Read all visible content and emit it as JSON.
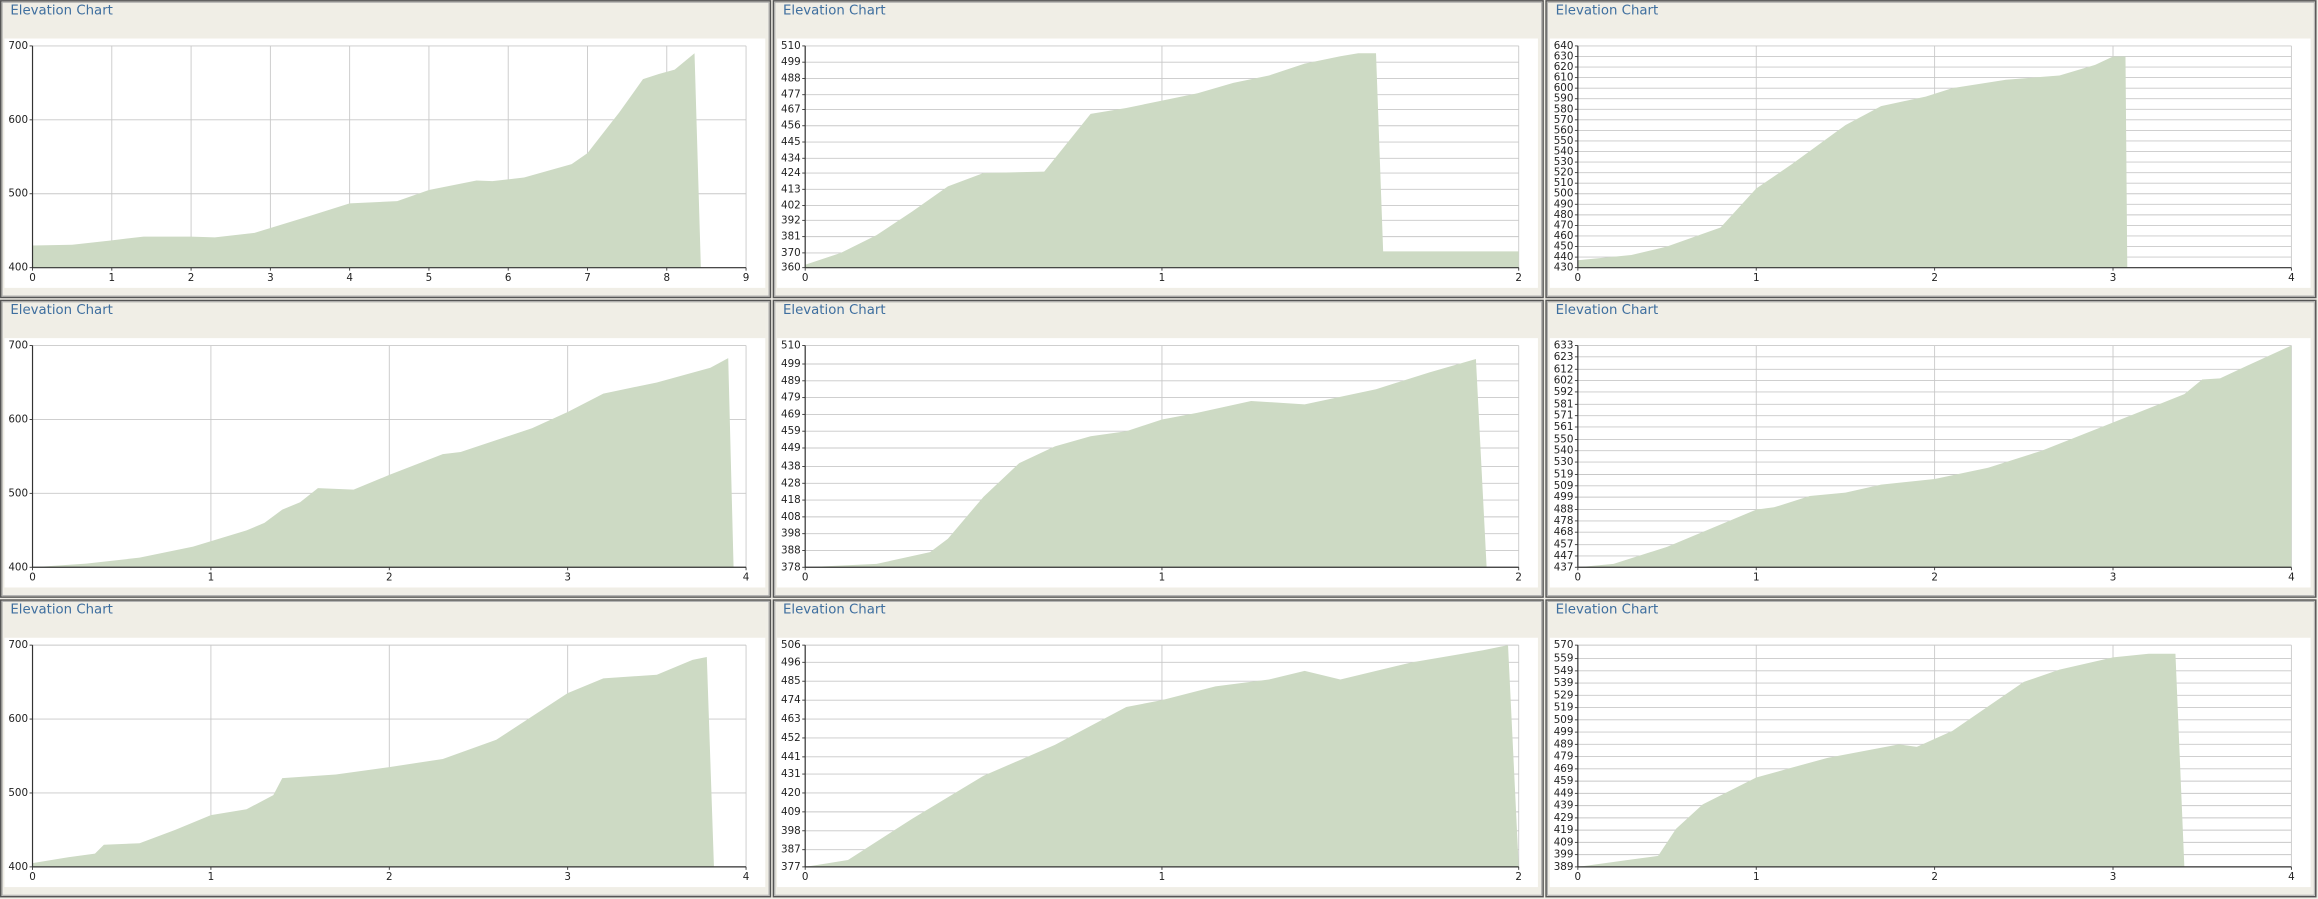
{
  "chart_data": [
    {
      "type": "area",
      "title": "Elevation Chart",
      "color": "#cddac4",
      "grid": true,
      "x": [
        0,
        0.5,
        1,
        1.4,
        2,
        2.3,
        2.8,
        3.5,
        4,
        4.6,
        5,
        5.6,
        5.8,
        6.2,
        6.8,
        7,
        7.4,
        7.7,
        7.9,
        8.1,
        8.35,
        8.43
      ],
      "values": [
        430,
        431,
        437,
        442,
        442,
        441,
        447,
        470,
        487,
        490,
        505,
        518,
        517,
        522,
        540,
        555,
        610,
        655,
        662,
        668,
        690,
        400
      ],
      "xlim": [
        0,
        9
      ],
      "ylim": [
        400,
        700
      ],
      "xticks": [
        0,
        1,
        2,
        3,
        4,
        5,
        6,
        7,
        8,
        9
      ],
      "yticks": [
        400,
        500,
        600,
        700
      ]
    },
    {
      "type": "area",
      "title": "Elevation Chart",
      "color": "#cddac4",
      "grid": true,
      "x": [
        0,
        0.1,
        0.2,
        0.3,
        0.4,
        0.5,
        0.67,
        0.8,
        0.9,
        1,
        1.1,
        1.2,
        1.3,
        1.4,
        1.5,
        1.55,
        1.6,
        1.62,
        1.8,
        2
      ],
      "values": [
        362,
        370,
        382,
        398,
        415,
        424,
        425,
        464,
        468,
        473,
        478,
        485,
        490,
        498,
        503,
        505,
        505,
        371,
        371,
        371
      ],
      "xlim": [
        0,
        2
      ],
      "ylim": [
        360,
        510
      ],
      "xticks": [
        0,
        1,
        2
      ],
      "yticks": [
        360,
        370,
        381,
        392,
        402,
        413,
        424,
        434,
        445,
        456,
        467,
        477,
        488,
        499,
        510
      ]
    },
    {
      "type": "area",
      "title": "Elevation Chart",
      "color": "#cddac4",
      "grid": true,
      "x": [
        0,
        0.3,
        0.5,
        0.8,
        1,
        1.2,
        1.5,
        1.7,
        1.95,
        2.1,
        2.4,
        2.7,
        2.9,
        3,
        3.07,
        3.08
      ],
      "values": [
        437,
        442,
        450,
        468,
        505,
        528,
        565,
        583,
        592,
        600,
        608,
        612,
        622,
        630,
        630,
        430
      ],
      "xlim": [
        0,
        4
      ],
      "ylim": [
        430,
        640
      ],
      "xticks": [
        0,
        1,
        2,
        3,
        4
      ],
      "yticks": [
        430,
        440,
        450,
        460,
        470,
        480,
        490,
        500,
        510,
        520,
        530,
        540,
        550,
        560,
        570,
        580,
        590,
        600,
        610,
        620,
        630,
        640
      ]
    },
    {
      "type": "area",
      "title": "Elevation Chart",
      "color": "#cddac4",
      "grid": true,
      "x": [
        0,
        0.3,
        0.6,
        0.9,
        1.2,
        1.3,
        1.4,
        1.5,
        1.6,
        1.8,
        2,
        2.3,
        2.4,
        2.8,
        3,
        3.2,
        3.5,
        3.8,
        3.9,
        3.93
      ],
      "values": [
        400,
        405,
        413,
        428,
        450,
        460,
        478,
        488,
        507,
        505,
        525,
        553,
        556,
        588,
        610,
        635,
        650,
        670,
        683,
        400
      ],
      "xlim": [
        0,
        4
      ],
      "ylim": [
        400,
        700
      ],
      "xticks": [
        0,
        1,
        2,
        3,
        4
      ],
      "yticks": [
        400,
        500,
        600,
        700
      ]
    },
    {
      "type": "area",
      "title": "Elevation Chart",
      "color": "#cddac4",
      "grid": true,
      "x": [
        0,
        0.2,
        0.35,
        0.4,
        0.5,
        0.6,
        0.7,
        0.8,
        0.9,
        1,
        1.1,
        1.25,
        1.4,
        1.6,
        1.75,
        1.88,
        1.91
      ],
      "values": [
        378,
        380,
        387,
        395,
        420,
        440,
        450,
        456,
        459,
        466,
        470,
        477,
        475,
        484,
        494,
        502,
        378
      ],
      "xlim": [
        0,
        2
      ],
      "ylim": [
        378,
        510
      ],
      "xticks": [
        0,
        1,
        2
      ],
      "yticks": [
        378,
        388,
        398,
        408,
        418,
        428,
        438,
        449,
        459,
        469,
        479,
        489,
        499,
        510
      ]
    },
    {
      "type": "area",
      "title": "Elevation Chart",
      "color": "#cddac4",
      "grid": true,
      "x": [
        0,
        0.2,
        0.5,
        1,
        1.1,
        1.3,
        1.5,
        1.7,
        2,
        2.3,
        2.6,
        3,
        3.4,
        3.5,
        3.6,
        3.75,
        4
      ],
      "values": [
        437,
        440,
        455,
        488,
        490,
        500,
        503,
        510,
        515,
        525,
        540,
        565,
        590,
        603,
        604,
        615,
        633
      ],
      "xlim": [
        0,
        4
      ],
      "ylim": [
        437,
        633
      ],
      "xticks": [
        0,
        1,
        2,
        3,
        4
      ],
      "yticks": [
        437,
        447,
        457,
        468,
        478,
        488,
        499,
        509,
        519,
        530,
        540,
        550,
        561,
        571,
        581,
        592,
        602,
        612,
        623,
        633
      ]
    },
    {
      "type": "area",
      "title": "Elevation Chart",
      "color": "#cddac4",
      "grid": true,
      "x": [
        0,
        0.2,
        0.35,
        0.4,
        0.6,
        0.8,
        1,
        1.2,
        1.35,
        1.4,
        1.7,
        2,
        2.3,
        2.6,
        3,
        3.2,
        3.5,
        3.7,
        3.78,
        3.82
      ],
      "values": [
        405,
        413,
        418,
        430,
        432,
        450,
        470,
        478,
        497,
        520,
        525,
        535,
        546,
        572,
        635,
        655,
        660,
        680,
        684,
        400
      ],
      "xlim": [
        0,
        4
      ],
      "ylim": [
        400,
        700
      ],
      "xticks": [
        0,
        1,
        2,
        3,
        4
      ],
      "yticks": [
        400,
        500,
        600,
        700
      ]
    },
    {
      "type": "area",
      "title": "Elevation Chart",
      "color": "#cddac4",
      "grid": true,
      "x": [
        0,
        0.12,
        0.3,
        0.5,
        0.7,
        0.9,
        1,
        1.15,
        1.3,
        1.4,
        1.5,
        1.7,
        1.9,
        1.97,
        2
      ],
      "values": [
        377,
        381,
        405,
        430,
        448,
        470,
        474,
        482,
        486,
        491,
        486,
        496,
        503,
        506,
        377
      ],
      "xlim": [
        0,
        2
      ],
      "ylim": [
        377,
        506
      ],
      "xticks": [
        0,
        1,
        2
      ],
      "yticks": [
        377,
        387,
        398,
        409,
        420,
        431,
        441,
        452,
        463,
        474,
        485,
        496,
        506
      ]
    },
    {
      "type": "area",
      "title": "Elevation Chart",
      "color": "#cddac4",
      "grid": true,
      "x": [
        0,
        0.3,
        0.45,
        0.55,
        0.7,
        1,
        1.2,
        1.4,
        1.8,
        1.9,
        2.1,
        2.3,
        2.5,
        2.7,
        3,
        3.2,
        3.35,
        3.4
      ],
      "values": [
        389,
        395,
        398,
        420,
        440,
        462,
        470,
        478,
        489,
        487,
        500,
        520,
        540,
        550,
        560,
        563,
        563,
        389
      ],
      "xlim": [
        0,
        4
      ],
      "ylim": [
        389,
        570
      ],
      "xticks": [
        0,
        1,
        2,
        3,
        4
      ],
      "yticks": [
        389,
        399,
        409,
        419,
        429,
        439,
        449,
        459,
        469,
        479,
        489,
        499,
        509,
        519,
        529,
        539,
        549,
        559,
        570
      ]
    }
  ]
}
